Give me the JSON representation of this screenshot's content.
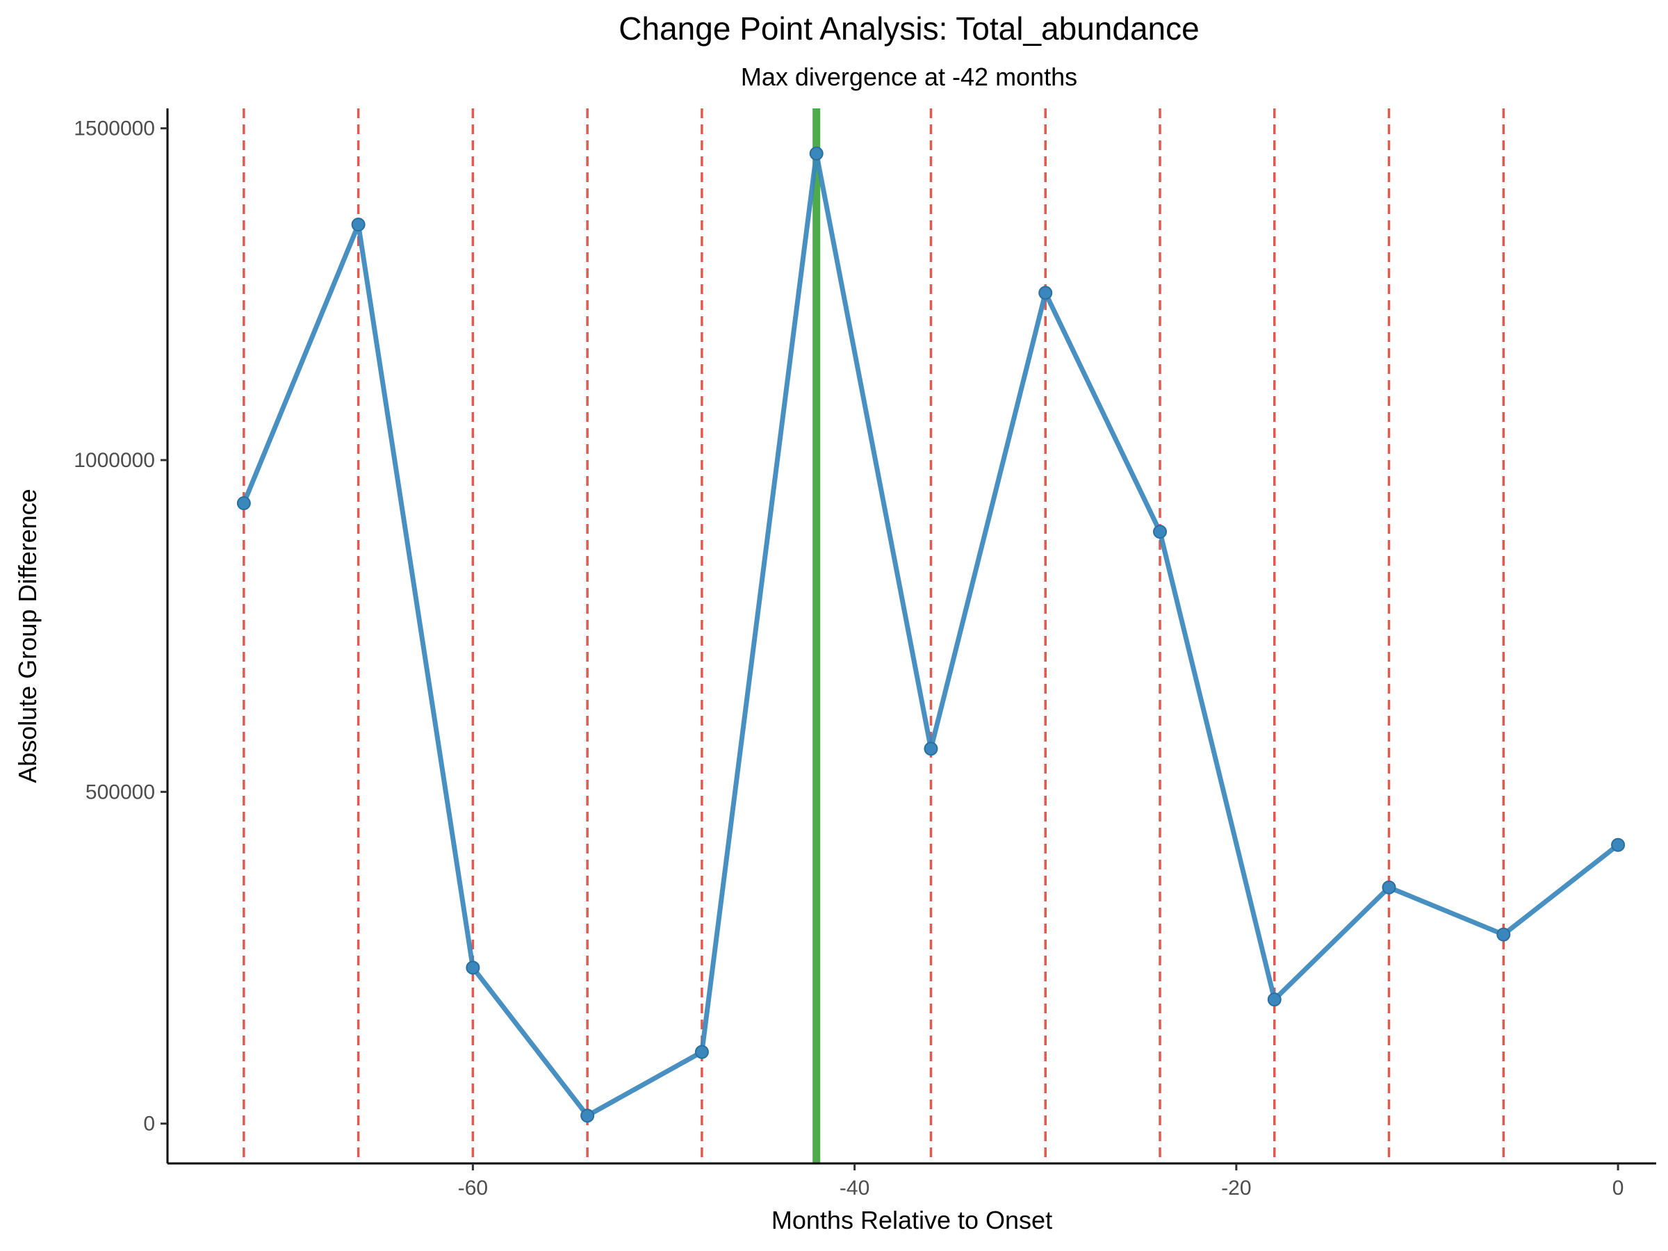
{
  "chart_data": {
    "type": "line",
    "title": "Change Point Analysis: Total_abundance",
    "subtitle": "Max divergence at -42 months",
    "xlabel": "Months Relative to Onset",
    "ylabel": "Absolute Group Difference",
    "xlim": [
      -76,
      2
    ],
    "ylim": [
      -60000,
      1530000
    ],
    "x_ticks": [
      -60,
      -40,
      -20,
      0
    ],
    "x_tick_labels": [
      "-60",
      "-40",
      "-20",
      "0"
    ],
    "y_ticks": [
      0,
      500000,
      1000000,
      1500000
    ],
    "y_tick_labels": [
      "0",
      "500000",
      "1000000",
      "1500000"
    ],
    "grid": false,
    "series": [
      {
        "x": [
          -72,
          -66,
          -60,
          -54,
          -48,
          -42,
          -36,
          -30,
          -24,
          -18,
          -12,
          -6,
          0
        ],
        "values": [
          935000,
          1355000,
          235000,
          12000,
          108000,
          1462000,
          565000,
          1252000,
          892000,
          187000,
          356000,
          285000,
          420000
        ],
        "color": "#3a87bd"
      }
    ],
    "reference_lines": {
      "dashed_x": [
        -72,
        -66,
        -60,
        -54,
        -48,
        -36,
        -30,
        -24,
        -18,
        -12,
        -6
      ],
      "dashed_color": "#e05a4f",
      "highlight_x": -42,
      "highlight_color": "#3aa335"
    }
  }
}
